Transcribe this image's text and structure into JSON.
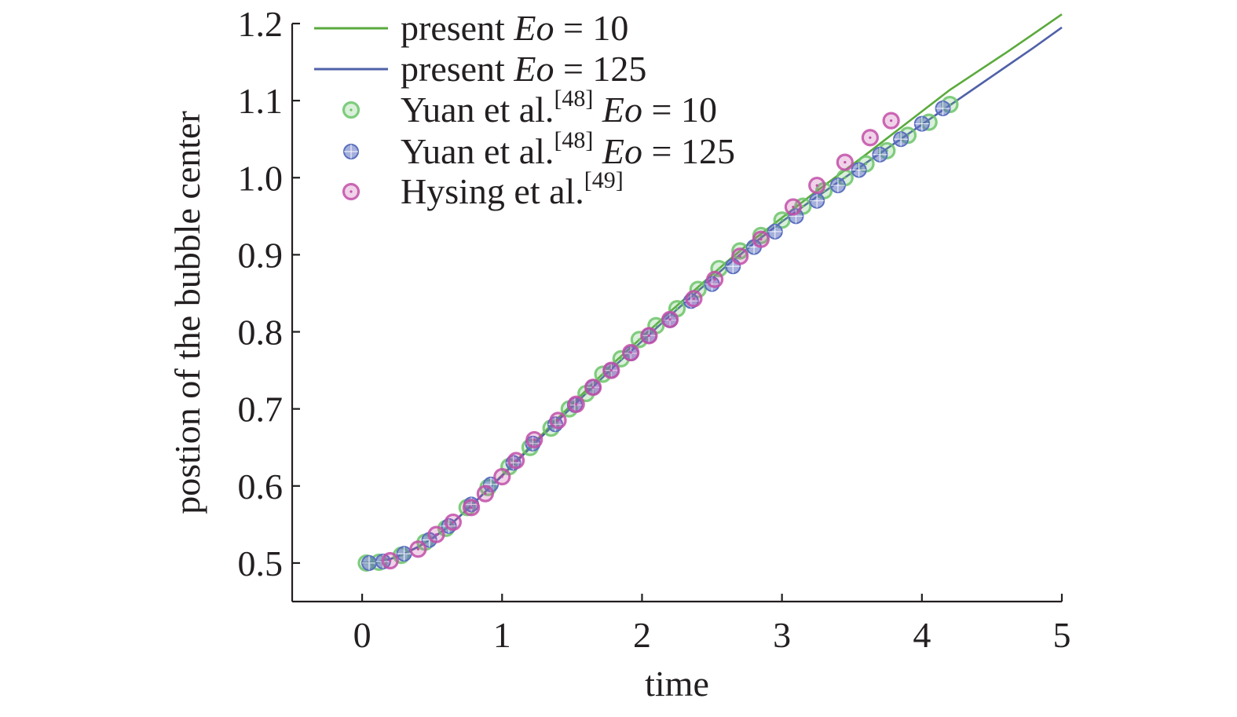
{
  "chart_data": {
    "type": "line",
    "xlabel": "time",
    "ylabel": "postion of the bubble center",
    "xlim": [
      -0.5,
      5
    ],
    "ylim": [
      0.45,
      1.2
    ],
    "xticks": [
      "0",
      "1",
      "2",
      "3",
      "4",
      "5"
    ],
    "yticks": [
      "0.5",
      "0.6",
      "0.7",
      "0.8",
      "0.9",
      "1.0",
      "1.1",
      "1.2"
    ],
    "grid": false,
    "legend_position": "top-left",
    "legend": [
      {
        "prefix": "present ",
        "italic": "Eo",
        "suffix": " = 10",
        "sup": "",
        "marker": "line",
        "color": "#5aaa3c"
      },
      {
        "prefix": "present ",
        "italic": "Eo",
        "suffix": " = 125",
        "sup": "",
        "marker": "line",
        "color": "#5061a8"
      },
      {
        "prefix": "Yuan et al.",
        "sup": "[48]",
        "italic": " Eo",
        "suffix": " = 10",
        "marker": "circle",
        "color": "#6cc46a"
      },
      {
        "prefix": "Yuan et al.",
        "sup": "[48]",
        "italic": " Eo",
        "suffix": " = 125",
        "marker": "cross",
        "color": "#5b6fc0"
      },
      {
        "prefix": "Hysing et al.",
        "sup": "[49]",
        "italic": "",
        "suffix": "",
        "marker": "circle",
        "color": "#c24fa8"
      }
    ],
    "series": [
      {
        "name": "present Eo = 10",
        "kind": "line",
        "color": "#5aaa3c",
        "x": [
          0,
          0.1,
          0.2,
          0.3,
          0.4,
          0.5,
          0.6,
          0.7,
          0.8,
          0.9,
          1.0,
          1.2,
          1.4,
          1.6,
          1.8,
          2.0,
          2.2,
          2.4,
          2.6,
          2.8,
          3.0,
          3.2,
          3.4,
          3.6,
          3.8,
          4.0,
          4.2,
          4.4,
          4.6,
          4.8,
          5.0
        ],
        "y": [
          0.5,
          0.501,
          0.505,
          0.512,
          0.521,
          0.532,
          0.545,
          0.561,
          0.578,
          0.596,
          0.614,
          0.651,
          0.688,
          0.724,
          0.76,
          0.793,
          0.826,
          0.858,
          0.89,
          0.92,
          0.948,
          0.976,
          1.003,
          1.03,
          1.058,
          1.086,
          1.114,
          1.138,
          1.162,
          1.187,
          1.212
        ]
      },
      {
        "name": "present Eo = 125",
        "kind": "line",
        "color": "#5061a8",
        "x": [
          0,
          0.1,
          0.2,
          0.3,
          0.4,
          0.5,
          0.6,
          0.7,
          0.8,
          0.9,
          1.0,
          1.2,
          1.4,
          1.6,
          1.8,
          2.0,
          2.2,
          2.4,
          2.6,
          2.8,
          3.0,
          3.2,
          3.4,
          3.6,
          3.8,
          4.0,
          4.2,
          4.4,
          4.6,
          4.8,
          5.0
        ],
        "y": [
          0.5,
          0.501,
          0.505,
          0.512,
          0.521,
          0.532,
          0.545,
          0.561,
          0.578,
          0.596,
          0.613,
          0.649,
          0.685,
          0.72,
          0.755,
          0.788,
          0.821,
          0.853,
          0.885,
          0.915,
          0.943,
          0.969,
          0.994,
          1.019,
          1.044,
          1.069,
          1.094,
          1.119,
          1.144,
          1.169,
          1.195
        ]
      },
      {
        "name": "Yuan et al.[48] Eo = 10",
        "kind": "circle",
        "color": "#6cc46a",
        "x": [
          0.03,
          0.12,
          0.28,
          0.45,
          0.6,
          0.75,
          0.9,
          1.05,
          1.2,
          1.35,
          1.48,
          1.6,
          1.72,
          1.85,
          1.98,
          2.1,
          2.25,
          2.4,
          2.55,
          2.7,
          2.85,
          3.0,
          3.15,
          3.3,
          3.45,
          3.6,
          3.75,
          3.9,
          4.05,
          4.2
        ],
        "y": [
          0.5,
          0.501,
          0.51,
          0.527,
          0.545,
          0.572,
          0.598,
          0.625,
          0.65,
          0.675,
          0.7,
          0.72,
          0.745,
          0.765,
          0.79,
          0.808,
          0.83,
          0.855,
          0.882,
          0.905,
          0.925,
          0.945,
          0.963,
          0.983,
          1.0,
          1.018,
          1.035,
          1.055,
          1.072,
          1.095
        ]
      },
      {
        "name": "Yuan et al.[48] Eo = 125",
        "kind": "cross",
        "color": "#5b6fc0",
        "x": [
          0.05,
          0.15,
          0.3,
          0.48,
          0.62,
          0.78,
          0.92,
          1.08,
          1.22,
          1.38,
          1.52,
          1.65,
          1.78,
          1.92,
          2.05,
          2.2,
          2.35,
          2.5,
          2.65,
          2.8,
          2.95,
          3.1,
          3.25,
          3.4,
          3.55,
          3.7,
          3.85,
          4.0,
          4.15
        ],
        "y": [
          0.5,
          0.502,
          0.512,
          0.53,
          0.548,
          0.576,
          0.602,
          0.63,
          0.655,
          0.68,
          0.705,
          0.728,
          0.75,
          0.772,
          0.795,
          0.815,
          0.84,
          0.862,
          0.885,
          0.91,
          0.93,
          0.95,
          0.97,
          0.99,
          1.01,
          1.03,
          1.05,
          1.07,
          1.09
        ]
      },
      {
        "name": "Hysing et al.[49]",
        "kind": "circle",
        "color": "#c24fa8",
        "x": [
          0.2,
          0.4,
          0.53,
          0.65,
          0.78,
          0.88,
          1.0,
          1.1,
          1.23,
          1.4,
          1.53,
          1.65,
          1.78,
          1.92,
          2.05,
          2.2,
          2.37,
          2.52,
          2.7,
          2.85,
          3.08,
          3.25,
          3.45,
          3.63,
          3.78
        ],
        "y": [
          0.503,
          0.518,
          0.537,
          0.553,
          0.572,
          0.59,
          0.612,
          0.633,
          0.66,
          0.685,
          0.706,
          0.728,
          0.75,
          0.773,
          0.795,
          0.816,
          0.843,
          0.868,
          0.898,
          0.92,
          0.962,
          0.99,
          1.02,
          1.052,
          1.074
        ]
      }
    ]
  }
}
